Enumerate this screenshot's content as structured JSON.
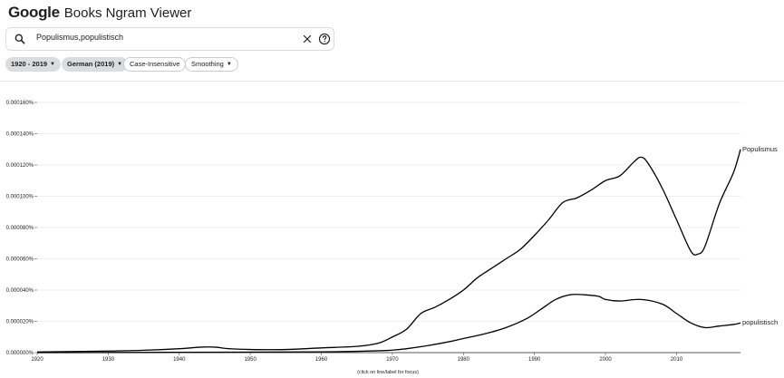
{
  "app": {
    "logo_google": "Google",
    "logo_rest": "Books Ngram Viewer"
  },
  "search": {
    "query": "Populismus,populistisch"
  },
  "controls": {
    "year_range": "1920 - 2019",
    "corpus": "German (2019)",
    "case": "Case-Insensitive",
    "smoothing": "Smoothing"
  },
  "icons": {
    "search": "search-icon",
    "clear": "close-icon",
    "help": "help-icon",
    "dropdown": "caret-down-icon"
  },
  "chart_data": {
    "type": "line",
    "xlim": [
      1920,
      2019
    ],
    "ylim": [
      0,
      1.6e-06
    ],
    "y_tick_values": [
      0,
      2e-07,
      4e-07,
      6e-07,
      8e-07,
      1e-06,
      1.2e-06,
      1.4e-06,
      1.6e-06
    ],
    "y_tick_labels": [
      "0.000000%",
      "0.000020%",
      "0.000040%",
      "0.000060%",
      "0.000080%",
      "0.000100%",
      "0.000120%",
      "0.000140%",
      "0.000160%"
    ],
    "x_tick_values": [
      1920,
      1930,
      1940,
      1950,
      1960,
      1970,
      1980,
      1990,
      2000,
      2010
    ],
    "x_tick_labels": [
      "1920",
      "1930",
      "1940",
      "1950",
      "1960",
      "1970",
      "1980",
      "1990",
      "2000",
      "2010"
    ],
    "grid": true,
    "footnote": "(click on line/label for focus)",
    "series": [
      {
        "name": "Populismus",
        "color": "#000000",
        "x": [
          1920,
          1930,
          1935,
          1940,
          1943,
          1945,
          1947,
          1950,
          1955,
          1960,
          1965,
          1968,
          1970,
          1972,
          1974,
          1976,
          1978,
          1980,
          1982,
          1984,
          1986,
          1988,
          1990,
          1992,
          1994,
          1996,
          1998,
          2000,
          2002,
          2004,
          2005,
          2006,
          2008,
          2010,
          2012,
          2013,
          2014,
          2016,
          2018,
          2019
        ],
        "y": [
          4e-09,
          1e-08,
          1.5e-08,
          2.5e-08,
          3.5e-08,
          3.5e-08,
          2.5e-08,
          2e-08,
          2e-08,
          3e-08,
          4e-08,
          6e-08,
          1e-07,
          1.5e-07,
          2.5e-07,
          2.9e-07,
          3.4e-07,
          4e-07,
          4.8e-07,
          5.4e-07,
          6e-07,
          6.6e-07,
          7.5e-07,
          8.5e-07,
          9.6e-07,
          9.9e-07,
          1.04e-06,
          1.1e-06,
          1.13e-06,
          1.22e-06,
          1.25e-06,
          1.21e-06,
          1.05e-06,
          8.5e-07,
          6.5e-07,
          6.3e-07,
          6.8e-07,
          9.5e-07,
          1.15e-06,
          1.3e-06
        ]
      },
      {
        "name": "populistisch",
        "color": "#000000",
        "x": [
          1920,
          1940,
          1960,
          1968,
          1970,
          1972,
          1975,
          1978,
          1980,
          1983,
          1986,
          1989,
          1991,
          1993,
          1995,
          1997,
          1999,
          2000,
          2002,
          2005,
          2008,
          2010,
          2012,
          2014,
          2016,
          2018,
          2019
        ],
        "y": [
          0,
          2e-09,
          5e-09,
          1.2e-08,
          1.6e-08,
          2.5e-08,
          4.5e-08,
          7e-08,
          9e-08,
          1.2e-07,
          1.6e-07,
          2.2e-07,
          2.8e-07,
          3.4e-07,
          3.7e-07,
          3.7e-07,
          3.6e-07,
          3.4e-07,
          3.3e-07,
          3.4e-07,
          3.1e-07,
          2.5e-07,
          1.9e-07,
          1.6e-07,
          1.7e-07,
          1.8e-07,
          1.9e-07
        ]
      }
    ]
  }
}
